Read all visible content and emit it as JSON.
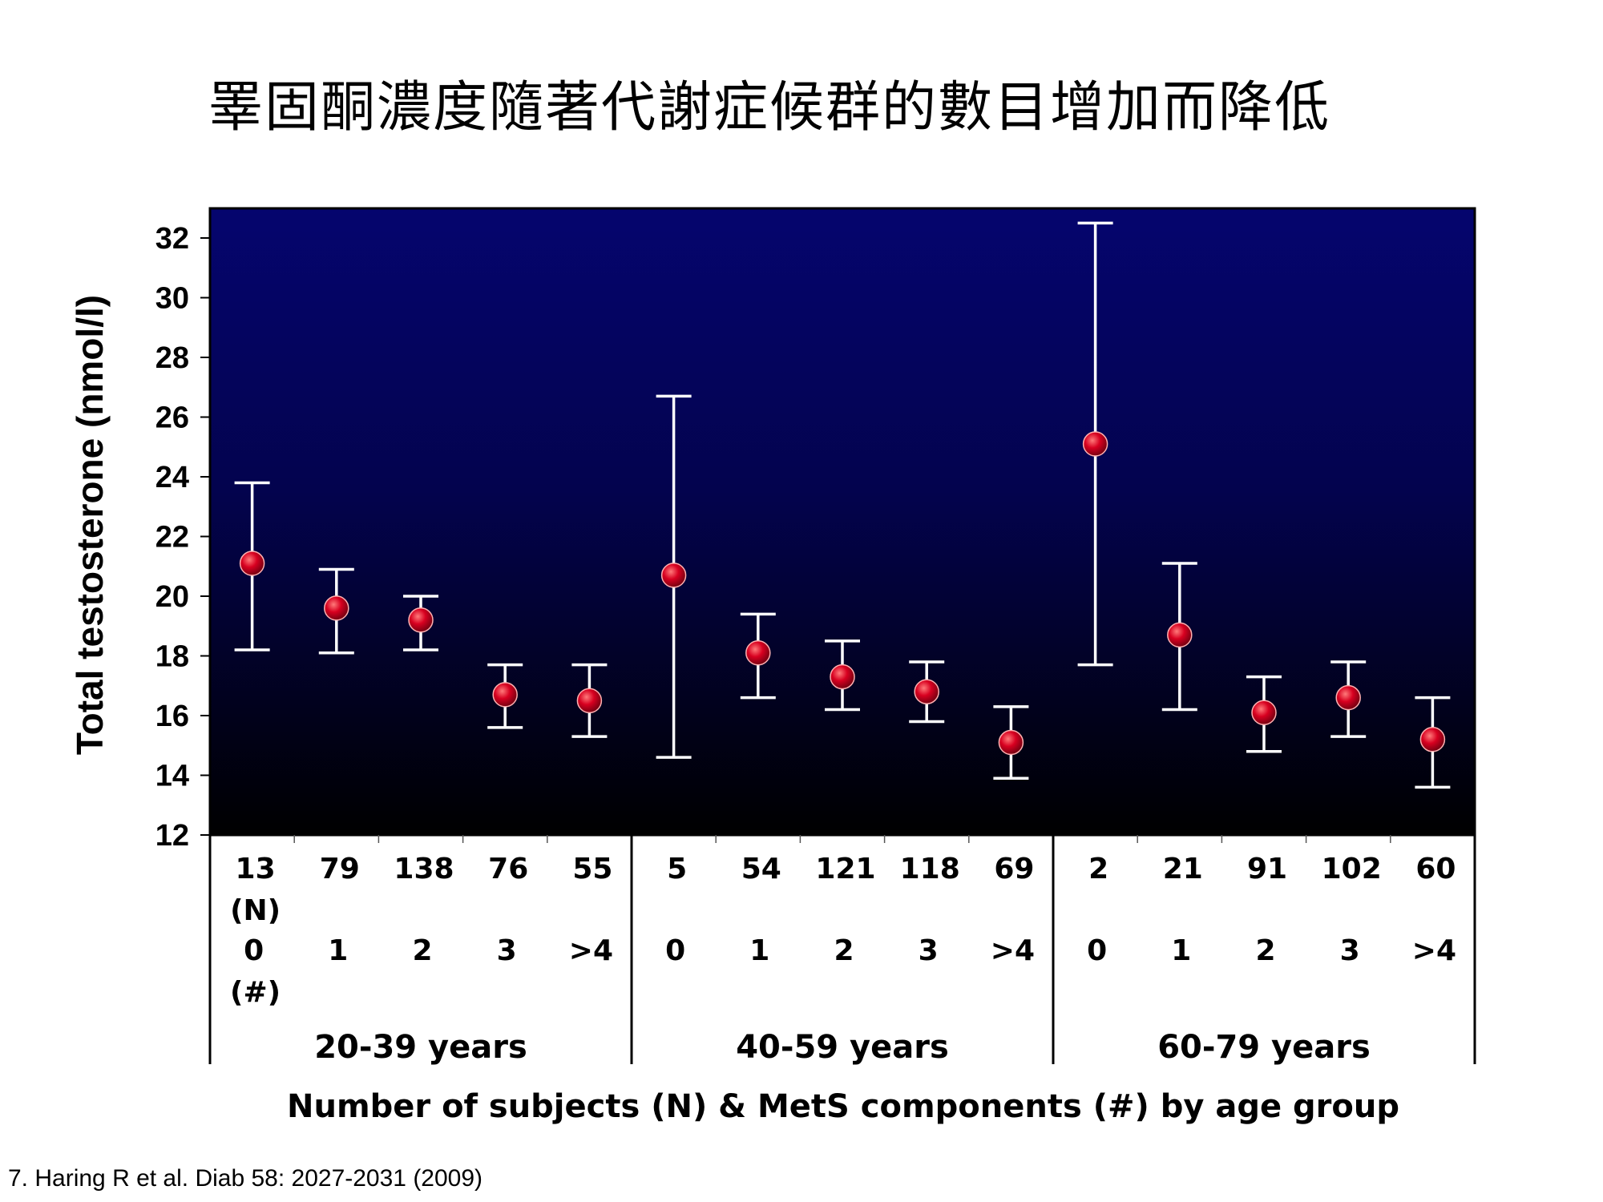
{
  "slide": {
    "title": "睪固酮濃度隨著代謝症候群的數目增加而降低",
    "citation": "7. Haring R et al. Diab 58: 2027-2031 (2009)"
  },
  "colors": {
    "plot_top": "#05056e",
    "plot_bottom": "#000000",
    "marker": "#d80020",
    "errorbar": "#ffffff"
  },
  "chart_data": {
    "type": "scatter",
    "ylabel": "Total testosterone (nmol/l)",
    "xlabel": "Number of subjects (N) & MetS components (#) by age group",
    "ylim": [
      12,
      32
    ],
    "yticks": [
      12,
      14,
      16,
      18,
      20,
      22,
      24,
      26,
      28,
      30,
      32
    ],
    "n_row_label": "(N)",
    "mets_row_label": "(#)",
    "groups": [
      {
        "name": "20-39 years",
        "points": [
          {
            "n": "13",
            "mets": "0",
            "value": 21.1,
            "lower": 18.2,
            "upper": 23.8
          },
          {
            "n": "79",
            "mets": "1",
            "value": 19.6,
            "lower": 18.1,
            "upper": 20.9
          },
          {
            "n": "138",
            "mets": "2",
            "value": 19.2,
            "lower": 18.2,
            "upper": 20.0
          },
          {
            "n": "76",
            "mets": "3",
            "value": 16.7,
            "lower": 15.6,
            "upper": 17.7
          },
          {
            "n": "55",
            "mets": ">4",
            "value": 16.5,
            "lower": 15.3,
            "upper": 17.7
          }
        ]
      },
      {
        "name": "40-59 years",
        "points": [
          {
            "n": "5",
            "mets": "0",
            "value": 20.7,
            "lower": 14.6,
            "upper": 26.7
          },
          {
            "n": "54",
            "mets": "1",
            "value": 18.1,
            "lower": 16.6,
            "upper": 19.4
          },
          {
            "n": "121",
            "mets": "2",
            "value": 17.3,
            "lower": 16.2,
            "upper": 18.5
          },
          {
            "n": "118",
            "mets": "3",
            "value": 16.8,
            "lower": 15.8,
            "upper": 17.8
          },
          {
            "n": "69",
            "mets": ">4",
            "value": 15.1,
            "lower": 13.9,
            "upper": 16.3
          }
        ]
      },
      {
        "name": "60-79 years",
        "points": [
          {
            "n": "2",
            "mets": "0",
            "value": 25.1,
            "lower": 17.7,
            "upper": 32.5
          },
          {
            "n": "21",
            "mets": "1",
            "value": 18.7,
            "lower": 16.2,
            "upper": 21.1
          },
          {
            "n": "91",
            "mets": "2",
            "value": 16.1,
            "lower": 14.8,
            "upper": 17.3
          },
          {
            "n": "102",
            "mets": "3",
            "value": 16.6,
            "lower": 15.3,
            "upper": 17.8
          },
          {
            "n": "60",
            "mets": ">4",
            "value": 15.2,
            "lower": 13.6,
            "upper": 16.6
          }
        ]
      }
    ]
  }
}
